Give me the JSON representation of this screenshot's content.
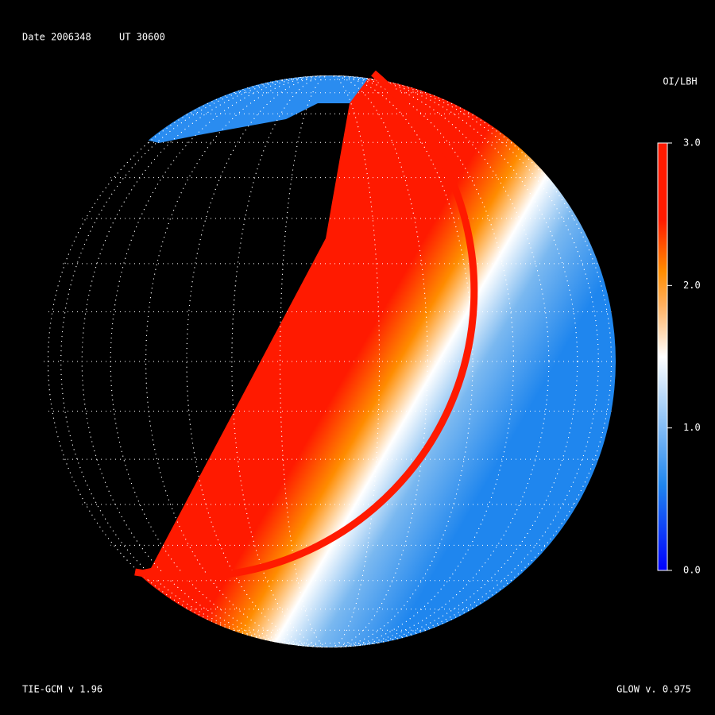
{
  "header": {
    "date": "Date 2006348",
    "ut": "UT 30600"
  },
  "colorbar": {
    "title": "OI/LBH",
    "lim": [
      0,
      3
    ],
    "ticks": [
      {
        "value": 0,
        "label": "0.0"
      },
      {
        "value": 1,
        "label": "1.0"
      },
      {
        "value": 2,
        "label": "2.0"
      },
      {
        "value": 3,
        "label": "3.0"
      }
    ]
  },
  "footer": {
    "left": "TIE-GCM v 1.96",
    "right": "GLOW v. 0.975"
  }
}
